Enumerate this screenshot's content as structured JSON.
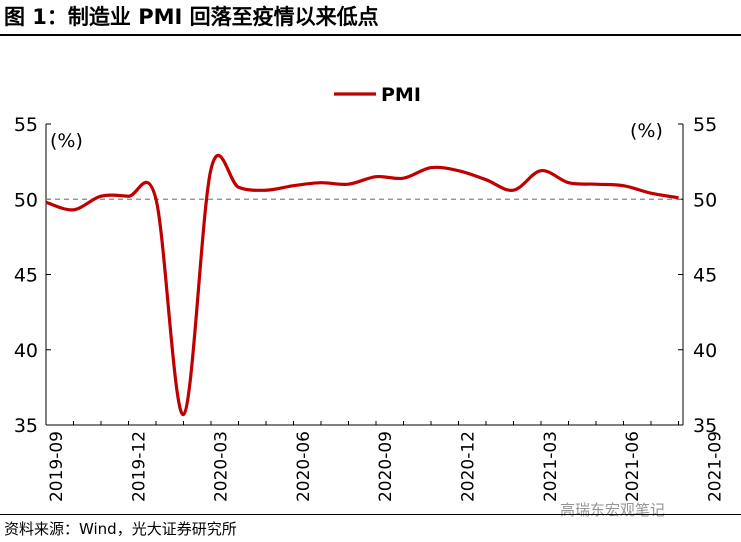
{
  "title": "图 1：制造业 PMI 回落至疫情以来低点",
  "source": "资料来源：Wind，光大证券研究所",
  "watermark": "高瑞东宏观笔记",
  "chart_data": {
    "type": "line",
    "x": [
      "2019-09",
      "2019-10",
      "2019-11",
      "2019-12",
      "2020-01",
      "2020-02",
      "2020-03",
      "2020-04",
      "2020-05",
      "2020-06",
      "2020-07",
      "2020-08",
      "2020-09",
      "2020-10",
      "2020-11",
      "2020-12",
      "2021-01",
      "2021-02",
      "2021-03",
      "2021-04",
      "2021-05",
      "2021-06",
      "2021-07",
      "2021-08"
    ],
    "x_tick_labels": [
      "2019-09",
      "2019-12",
      "2020-03",
      "2020-06",
      "2020-09",
      "2020-12",
      "2021-03",
      "2021-06",
      "2021-09"
    ],
    "series": [
      {
        "name": "PMI",
        "color": "#c00000",
        "values": [
          49.8,
          49.3,
          50.2,
          50.2,
          50.0,
          35.7,
          52.0,
          50.8,
          50.6,
          50.9,
          51.1,
          51.0,
          51.5,
          51.4,
          52.1,
          51.9,
          51.3,
          50.6,
          51.9,
          51.1,
          51.0,
          50.9,
          50.4,
          50.1
        ]
      }
    ],
    "reference_line": {
      "y": 50,
      "style": "dashed",
      "color": "#888888"
    },
    "ylim": [
      35,
      55
    ],
    "yticks": [
      35,
      40,
      45,
      50,
      55
    ],
    "yunit_left": "(%)",
    "yunit_right": "(%)",
    "legend": {
      "position": "top-center"
    },
    "grid": false
  }
}
